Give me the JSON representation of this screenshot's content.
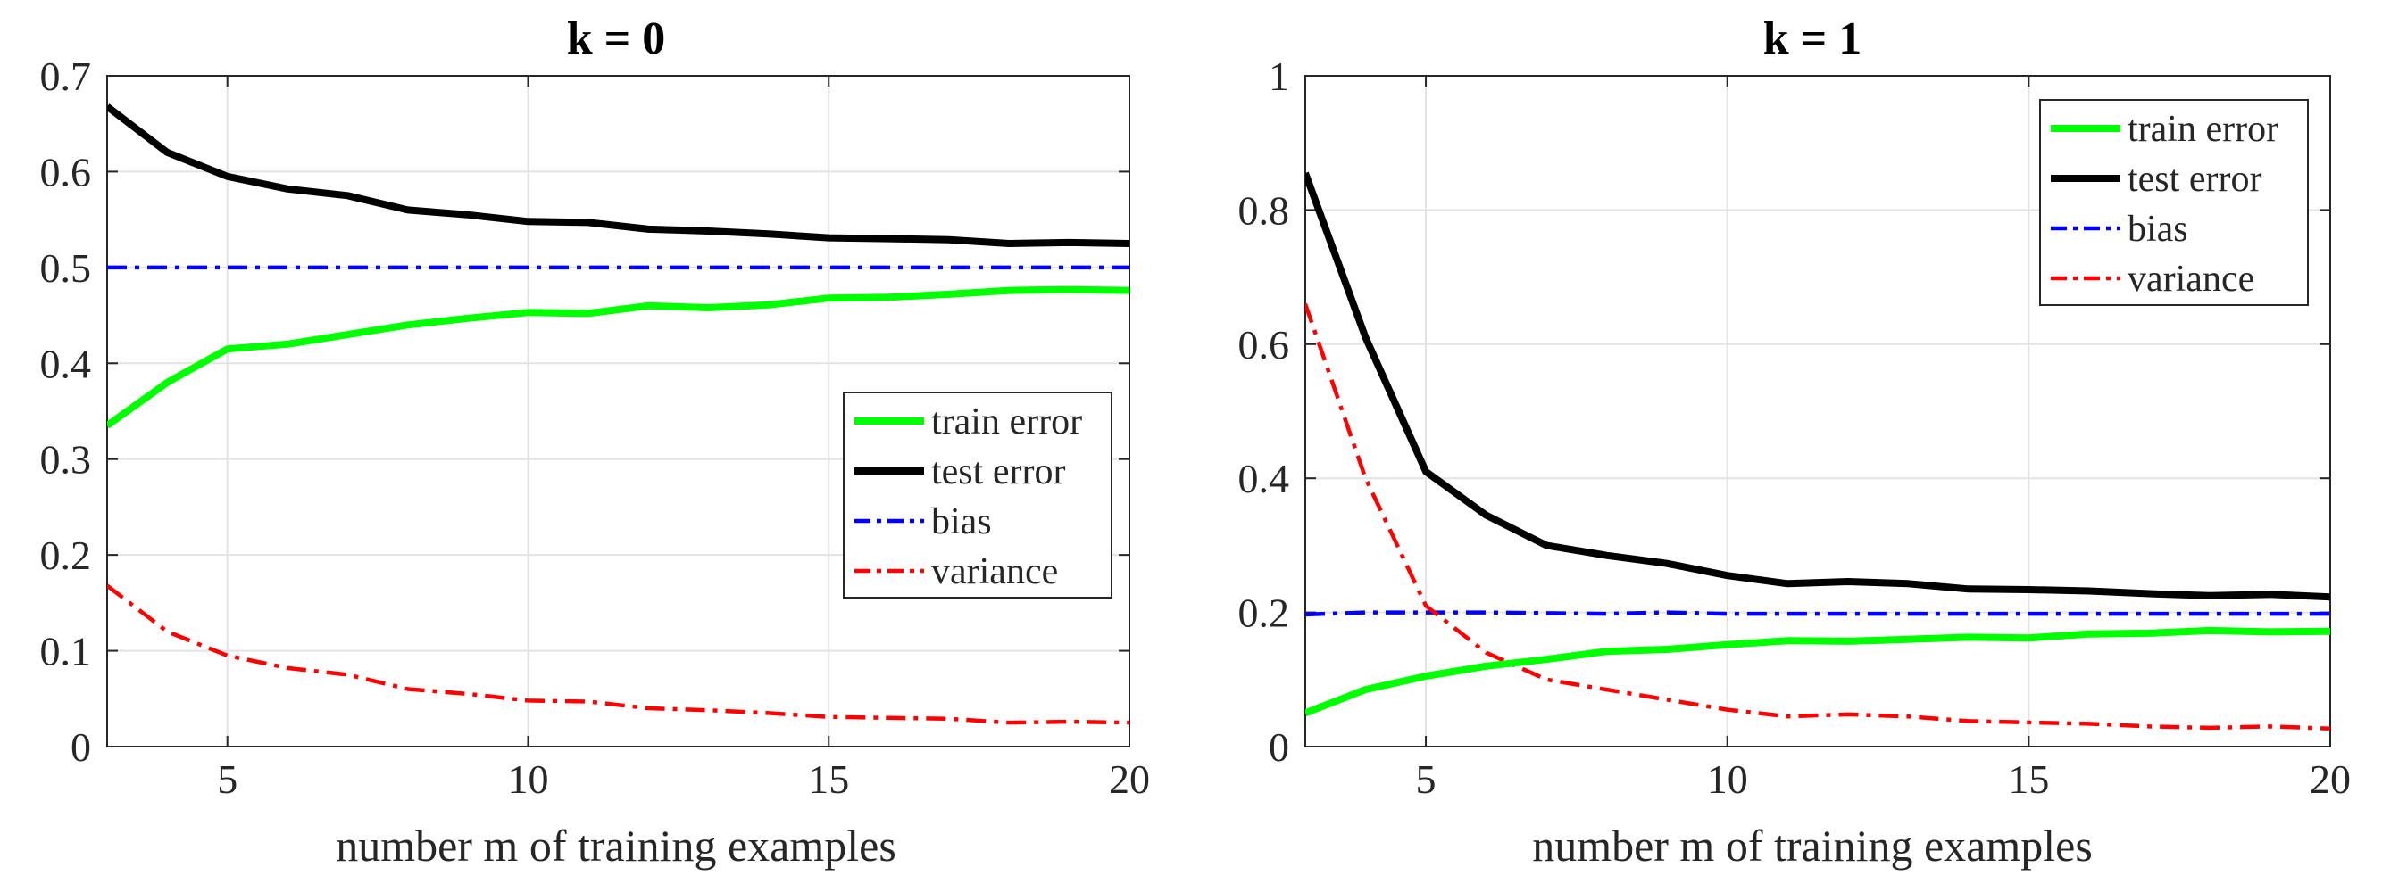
{
  "chart_data": [
    {
      "type": "line",
      "title": "k = 0",
      "xlabel": "number m of training examples",
      "ylabel": "",
      "xlim": [
        3,
        20
      ],
      "ylim": [
        0,
        0.7
      ],
      "xticks": [
        5,
        10,
        15,
        20
      ],
      "yticks": [
        0,
        0.1,
        0.2,
        0.3,
        0.4,
        0.5,
        0.6,
        0.7
      ],
      "ytick_labels": [
        "0",
        "0.1",
        "0.2",
        "0.3",
        "0.4",
        "0.5",
        "0.6",
        "0.7"
      ],
      "grid": true,
      "legend": "center-right",
      "x": [
        3,
        4,
        5,
        6,
        7,
        8,
        9,
        10,
        11,
        12,
        13,
        14,
        15,
        16,
        17,
        18,
        19,
        20
      ],
      "series": [
        {
          "name": "train error",
          "color": "#00ff00",
          "style": "solid",
          "values": [
            0.335,
            0.38,
            0.415,
            0.42,
            0.43,
            0.44,
            0.447,
            0.453,
            0.452,
            0.46,
            0.458,
            0.461,
            0.468,
            0.469,
            0.472,
            0.476,
            0.477,
            0.476
          ]
        },
        {
          "name": "test error",
          "color": "#000000",
          "style": "solid",
          "values": [
            0.668,
            0.62,
            0.595,
            0.582,
            0.575,
            0.56,
            0.555,
            0.548,
            0.547,
            0.54,
            0.538,
            0.535,
            0.531,
            0.53,
            0.529,
            0.525,
            0.526,
            0.525
          ]
        },
        {
          "name": "bias",
          "color": "#0000ff",
          "style": "dashdot",
          "values": [
            0.5,
            0.5,
            0.5,
            0.5,
            0.5,
            0.5,
            0.5,
            0.5,
            0.5,
            0.5,
            0.5,
            0.5,
            0.5,
            0.5,
            0.5,
            0.5,
            0.5,
            0.5
          ]
        },
        {
          "name": "variance",
          "color": "#ff0000",
          "style": "dashdot",
          "values": [
            0.168,
            0.12,
            0.095,
            0.082,
            0.075,
            0.06,
            0.055,
            0.048,
            0.047,
            0.04,
            0.038,
            0.035,
            0.031,
            0.03,
            0.029,
            0.025,
            0.026,
            0.025
          ]
        }
      ]
    },
    {
      "type": "line",
      "title": "k = 1",
      "xlabel": "number m of training examples",
      "ylabel": "",
      "xlim": [
        3,
        20
      ],
      "ylim": [
        0,
        1
      ],
      "xticks": [
        5,
        10,
        15,
        20
      ],
      "yticks": [
        0,
        0.2,
        0.4,
        0.6,
        0.8,
        1
      ],
      "ytick_labels": [
        "0",
        "0.2",
        "0.4",
        "0.6",
        "0.8",
        "1"
      ],
      "grid": true,
      "legend": "top-right",
      "x": [
        3,
        4,
        5,
        6,
        7,
        8,
        9,
        10,
        11,
        12,
        13,
        14,
        15,
        16,
        17,
        18,
        19,
        20
      ],
      "series": [
        {
          "name": "train error",
          "color": "#00ff00",
          "style": "solid",
          "values": [
            0.05,
            0.085,
            0.105,
            0.12,
            0.13,
            0.142,
            0.145,
            0.152,
            0.158,
            0.157,
            0.16,
            0.163,
            0.162,
            0.168,
            0.169,
            0.173,
            0.171,
            0.172
          ]
        },
        {
          "name": "test error",
          "color": "#000000",
          "style": "solid",
          "values": [
            0.855,
            0.61,
            0.41,
            0.345,
            0.3,
            0.285,
            0.273,
            0.255,
            0.243,
            0.246,
            0.243,
            0.235,
            0.234,
            0.232,
            0.228,
            0.225,
            0.227,
            0.223
          ]
        },
        {
          "name": "bias",
          "color": "#0000ff",
          "style": "dashdot",
          "values": [
            0.197,
            0.2,
            0.2,
            0.2,
            0.199,
            0.198,
            0.2,
            0.198,
            0.198,
            0.198,
            0.198,
            0.198,
            0.198,
            0.198,
            0.198,
            0.198,
            0.198,
            0.198
          ]
        },
        {
          "name": "variance",
          "color": "#ff0000",
          "style": "dashdot",
          "values": [
            0.66,
            0.4,
            0.21,
            0.14,
            0.1,
            0.085,
            0.07,
            0.055,
            0.045,
            0.048,
            0.045,
            0.038,
            0.036,
            0.034,
            0.03,
            0.028,
            0.03,
            0.027
          ]
        }
      ]
    }
  ]
}
